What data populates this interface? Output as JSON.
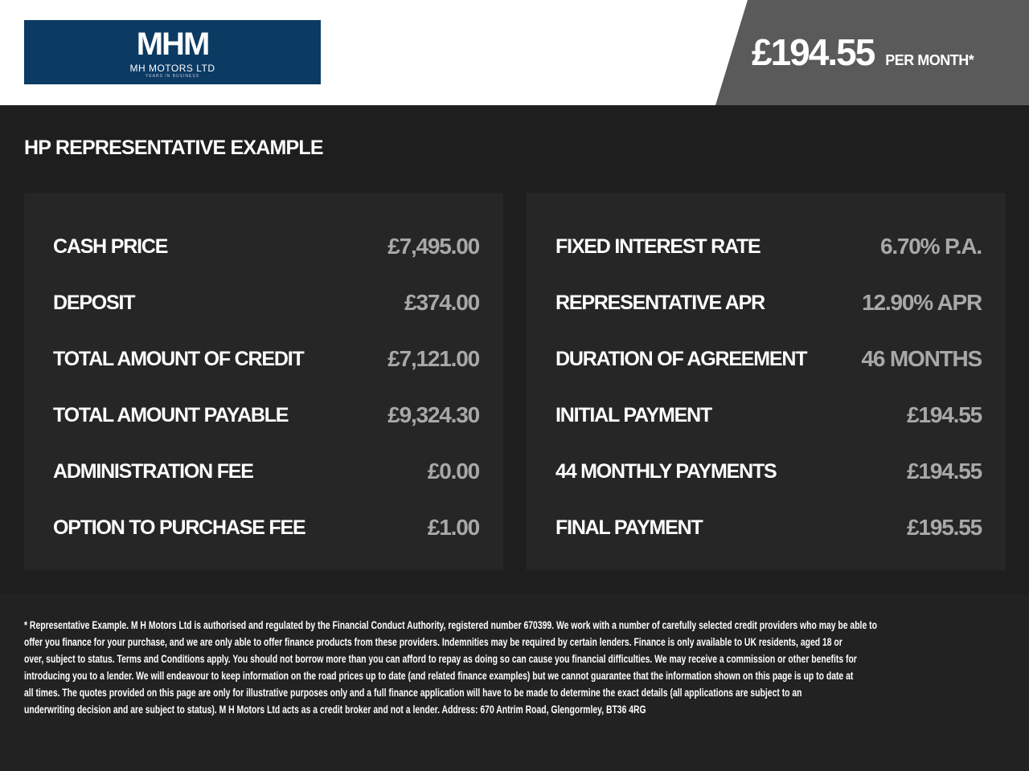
{
  "header": {
    "logo_text": "MHM",
    "logo_subtext": "MH MOTORS LTD",
    "logo_tagline": "YEARS IN BUSINESS",
    "price": "£194.55",
    "price_suffix": "PER MONTH*"
  },
  "section_title": "HP REPRESENTATIVE EXAMPLE",
  "left_rows": [
    {
      "label": "CASH PRICE",
      "value": "£7,495.00"
    },
    {
      "label": "DEPOSIT",
      "value": "£374.00"
    },
    {
      "label": "TOTAL AMOUNT OF CREDIT",
      "value": "£7,121.00"
    },
    {
      "label": "TOTAL AMOUNT PAYABLE",
      "value": "£9,324.30"
    },
    {
      "label": "ADMINISTRATION FEE",
      "value": "£0.00"
    },
    {
      "label": "OPTION TO PURCHASE FEE",
      "value": "£1.00"
    }
  ],
  "right_rows": [
    {
      "label": "FIXED INTEREST RATE",
      "value": "6.70% P.A."
    },
    {
      "label": "REPRESENTATIVE APR",
      "value": "12.90% APR"
    },
    {
      "label": "DURATION OF AGREEMENT",
      "value": "46 MONTHS"
    },
    {
      "label": "INITIAL PAYMENT",
      "value": "£194.55"
    },
    {
      "label": "44 MONTHLY PAYMENTS",
      "value": "£194.55"
    },
    {
      "label": "FINAL PAYMENT",
      "value": "£195.55"
    }
  ],
  "footer_lines": [
    "* Representative Example. M H Motors Ltd is authorised and regulated by the Financial Conduct Authority, registered number 670399. We work with a number of carefully selected credit providers who may be able to",
    "offer you finance for your purchase, and we are only able to offer finance products from these providers. Indemnities may be required by certain lenders. Finance is only available to UK residents, aged 18 or",
    "over, subject to status. Terms and Conditions apply. You should not borrow more than you can afford to repay as doing so can cause you financial difficulties. We may receive a commission or other benefits for",
    "introducing you to a lender. We will endeavour to keep information on the road prices up to date (and related finance examples) but we cannot guarantee that the information shown on this page is up to date at",
    "all times. The quotes provided on this page are only for illustrative purposes only and a full finance application will have to be made to determine the exact details (all applications are subject to an",
    "underwriting decision and are subject to status). M H Motors Ltd acts as a credit broker and not a lender. Address: 670 Antrim Road, Glengormley, BT36 4RG"
  ]
}
